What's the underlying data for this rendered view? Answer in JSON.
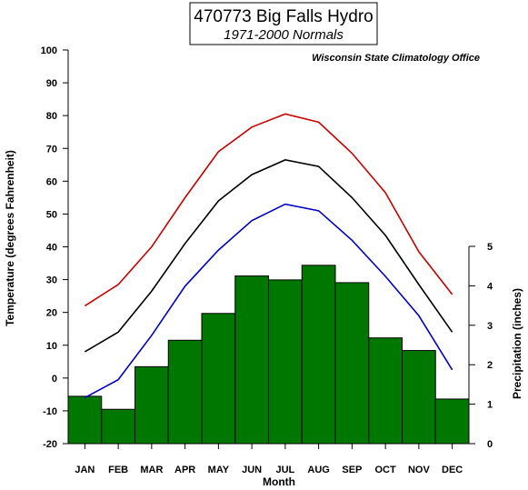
{
  "chart_data": {
    "type": "bar+line",
    "title": "470773 Big Falls Hydro",
    "subtitle": "1971-2000 Normals",
    "source": "Wisconsin State Climatology Office",
    "xlabel": "Month",
    "ylabel_left": "Temperature (degrees Fahrenheit)",
    "ylabel_right": "Precipitation (inches)",
    "categories": [
      "JAN",
      "FEB",
      "MAR",
      "APR",
      "MAY",
      "JUN",
      "JUL",
      "AUG",
      "SEP",
      "OCT",
      "NOV",
      "DEC"
    ],
    "y_left_range": [
      -20,
      100
    ],
    "y_left_ticks": [
      "100",
      "90",
      "80",
      "70",
      "60",
      "50",
      "40",
      "30",
      "20",
      "10",
      "0",
      "-10",
      "-20"
    ],
    "y_right_range": [
      0,
      5
    ],
    "y_right_ticks": [
      "5",
      "4",
      "3",
      "2",
      "1",
      "0"
    ],
    "series": [
      {
        "color": "#cc0000",
        "axis": "left",
        "type": "line",
        "values": [
          22,
          28.5,
          40,
          55,
          69,
          76.5,
          80.5,
          78,
          68.5,
          56.5,
          38.5,
          25.5
        ]
      },
      {
        "color": "#000000",
        "axis": "left",
        "type": "line",
        "values": [
          8,
          14,
          26.5,
          41,
          54,
          62,
          66.5,
          64.5,
          55,
          43.5,
          28.5,
          14
        ]
      },
      {
        "color": "#0000cc",
        "axis": "left",
        "type": "line",
        "values": [
          -6,
          -0.5,
          13,
          28,
          39,
          48,
          53,
          51,
          42,
          31,
          19,
          2.5
        ]
      },
      {
        "color": "#007700",
        "axis": "right",
        "type": "bar",
        "values": [
          1.2,
          0.87,
          1.95,
          2.62,
          3.3,
          4.25,
          4.15,
          4.52,
          4.08,
          2.68,
          2.36,
          1.13
        ]
      }
    ]
  }
}
